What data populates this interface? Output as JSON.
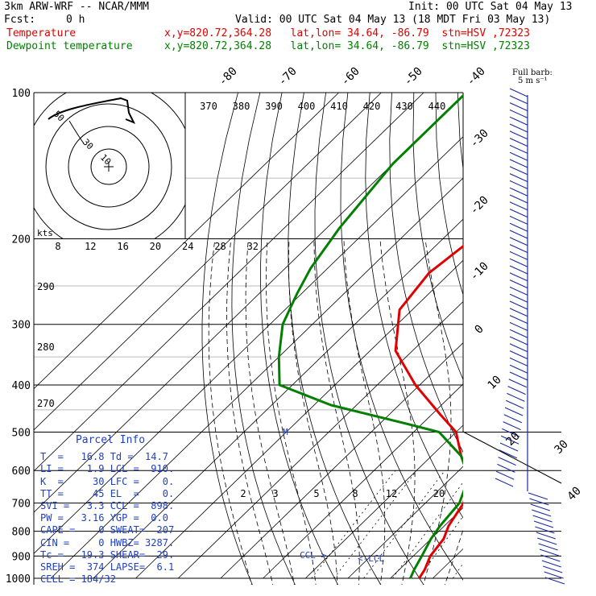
{
  "header": {
    "model": "3km ARW-WRF -- NCAR/MMM",
    "init": "Init: 00 UTC Sat 04 May 13",
    "fcst_label": "Fcst:",
    "fcst_value": "0 h",
    "valid": "Valid: 00 UTC Sat 04 May 13 (18 MDT Fri 03 May 13)",
    "temp_label": "Temperature",
    "temp_info": "x,y=820.72,364.28   lat,lon= 34.64, -86.79  stn=HSV ,72323",
    "dew_label": "Dewpoint temperature",
    "dew_info": "x,y=820.72,364.28   lat,lon= 34.64, -86.79  stn=HSV ,72323"
  },
  "barb_legend": {
    "line1": "Full barb:",
    "line2": "5 m s⁻¹"
  },
  "parcel_info": {
    "title": "Parcel Info",
    "rows": [
      "T  =   16.8 Td =  14.7",
      "LI =    1.9 LCL =  910.",
      "K  =     30 LFC =    0.",
      "TT =     45 EL  =    0.",
      "SVI =   3.3 CCL =  898.",
      "PW =   3.16 YGP =  0.0",
      "CAPE =    0 SWEAT=  207",
      "CIN =     0 HWBZ= 3287.",
      "Tc =   19.3 SHEAR=  29.",
      "SREH =  374 LAPSE=  6.1",
      "CELL = 184/32"
    ]
  },
  "hodograph": {
    "speed_label": "kts",
    "speed_ticks": [
      "8",
      "12",
      "16",
      "20",
      "24",
      "28",
      "32"
    ],
    "ring_labels": [
      "10",
      "30",
      "50"
    ]
  },
  "annotations": {
    "ccl": "CCL",
    "lcl": "<-LCL",
    "max_wind": "M"
  },
  "colors": {
    "temperature": "#e00000",
    "dewpoint": "#008000",
    "parcel_text": "#2040c0",
    "theta_lines": "#000000"
  },
  "chart_data": {
    "type": "line",
    "title": "",
    "pressure_levels": [
      100,
      200,
      300,
      400,
      500,
      600,
      700,
      800,
      900,
      1000
    ],
    "isotherm_labels": [
      "-80",
      "-70",
      "-60",
      "-50",
      "-40",
      "-30",
      "-20",
      "-10",
      "0",
      "10",
      "20",
      "30",
      "40"
    ],
    "theta_e_labels": [
      "370",
      "380",
      "390",
      "400",
      "410",
      "420",
      "430",
      "440"
    ],
    "theta_labels": [
      "290",
      "280",
      "270"
    ],
    "mixing_ratio_labels": [
      "2",
      "3",
      "5",
      "8",
      "12",
      "20"
    ],
    "series": [
      {
        "name": "Temperature",
        "p": [
          100,
          125,
          160,
          200,
          235,
          280,
          340,
          400,
          460,
          500,
          560,
          620,
          700,
          780,
          830,
          900,
          960,
          1000
        ],
        "t": [
          -56,
          -54,
          -53,
          -53,
          -55,
          -53,
          -44,
          -31,
          -18,
          -10,
          -3,
          4,
          9,
          11,
          13,
          14,
          16,
          16.8
        ]
      },
      {
        "name": "Dewpoint temperature",
        "p": [
          100,
          140,
          190,
          230,
          260,
          300,
          350,
          400,
          440,
          480,
          500,
          560,
          620,
          700,
          780,
          830,
          900,
          960,
          1000
        ],
        "t": [
          -90,
          -90,
          -87,
          -84,
          -81,
          -77,
          -70,
          -63,
          -46,
          -24,
          -14,
          -3,
          4,
          8,
          9,
          10,
          12,
          13.5,
          14.7
        ]
      }
    ]
  }
}
